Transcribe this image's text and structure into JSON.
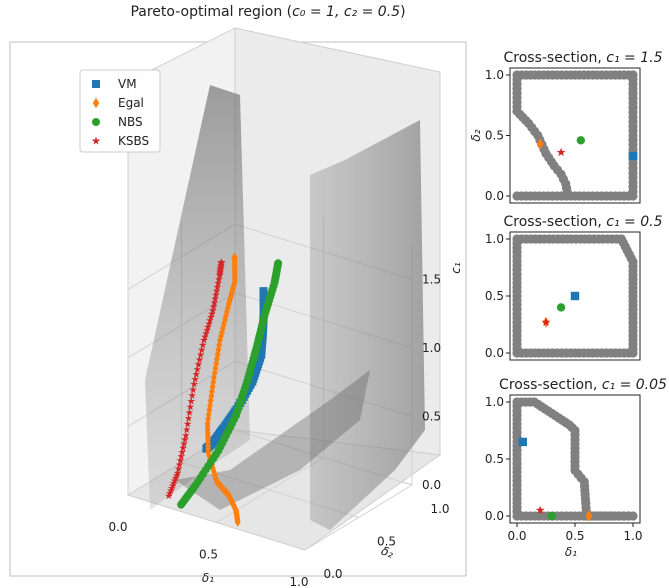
{
  "colors": {
    "VM": "#1f77b4",
    "Egal": "#ff7f0e",
    "NBS": "#2ca02c",
    "KSBS": "#d62728",
    "boundary": "#808080"
  },
  "chart_data": [
    {
      "type": "scatter",
      "projection": "3d",
      "title_prefix": "Pareto-optimal region (",
      "title_math": "c₀ = 1, c₂ = 0.5",
      "title_suffix": ")",
      "xlabel": "δ₁",
      "ylabel": "δ₂",
      "zlabel": "c₁",
      "x_ticks": [
        "0.0",
        "0.5",
        "1.0"
      ],
      "y_ticks": [
        "0.0",
        "0.5",
        "1.0"
      ],
      "z_ticks": [
        "0.0",
        "0.5",
        "1.0",
        "1.5"
      ],
      "xlim": [
        0,
        1
      ],
      "ylim": [
        0,
        1
      ],
      "zlim": [
        0,
        1.75
      ],
      "legend_position": "upper-left",
      "legend": [
        "VM",
        "Egal",
        "NBS",
        "KSBS"
      ],
      "series": [
        {
          "name": "VM",
          "marker": "square",
          "points": [
            [
              0.05,
              0.65,
              0.05
            ],
            [
              0.12,
              0.6,
              0.15
            ],
            [
              0.2,
              0.56,
              0.3
            ],
            [
              0.3,
              0.52,
              0.5
            ],
            [
              0.4,
              0.5,
              0.75
            ],
            [
              0.48,
              0.45,
              1.0
            ],
            [
              0.52,
              0.4,
              1.2
            ],
            [
              0.55,
              0.36,
              1.4
            ],
            [
              0.56,
              0.34,
              1.55
            ]
          ]
        },
        {
          "name": "Egal",
          "marker": "diamond",
          "points": [
            [
              0.62,
              0.0,
              0.05
            ],
            [
              0.55,
              0.1,
              0.06
            ],
            [
              0.45,
              0.2,
              0.08
            ],
            [
              0.35,
              0.25,
              0.12
            ],
            [
              0.29,
              0.27,
              0.3
            ],
            [
              0.28,
              0.28,
              0.5
            ],
            [
              0.3,
              0.3,
              0.8
            ],
            [
              0.32,
              0.33,
              1.1
            ],
            [
              0.34,
              0.38,
              1.35
            ],
            [
              0.35,
              0.42,
              1.5
            ],
            [
              0.33,
              0.45,
              1.65
            ]
          ]
        },
        {
          "name": "NBS",
          "marker": "circle",
          "points": [
            [
              0.3,
              0.0,
              0.05
            ],
            [
              0.32,
              0.1,
              0.15
            ],
            [
              0.36,
              0.25,
              0.35
            ],
            [
              0.38,
              0.38,
              0.55
            ],
            [
              0.42,
              0.42,
              0.8
            ],
            [
              0.46,
              0.44,
              1.05
            ],
            [
              0.5,
              0.45,
              1.3
            ],
            [
              0.55,
              0.46,
              1.55
            ],
            [
              0.57,
              0.46,
              1.7
            ]
          ]
        },
        {
          "name": "KSBS",
          "marker": "star",
          "points": [
            [
              0.2,
              0.05,
              0.05
            ],
            [
              0.22,
              0.1,
              0.2
            ],
            [
              0.23,
              0.16,
              0.45
            ],
            [
              0.24,
              0.22,
              0.8
            ],
            [
              0.26,
              0.28,
              1.1
            ],
            [
              0.28,
              0.33,
              1.3
            ],
            [
              0.3,
              0.36,
              1.55
            ],
            [
              0.31,
              0.36,
              1.65
            ]
          ]
        }
      ]
    },
    {
      "type": "scatter",
      "title_prefix": "Cross-section, ",
      "title_math": "c₁ = 1.5",
      "xlim": [
        0,
        1
      ],
      "ylim": [
        0,
        1
      ],
      "y_ticks": [
        "0.0",
        "0.5",
        "1.0"
      ],
      "ylabel": "δ₂",
      "boundary": [
        [
          0,
          0
        ],
        [
          1,
          0
        ],
        [
          1,
          1
        ],
        [
          0,
          1
        ],
        [
          0,
          0.7
        ],
        [
          0.1,
          0.6
        ],
        [
          0.18,
          0.5
        ],
        [
          0.25,
          0.35
        ],
        [
          0.32,
          0.25
        ],
        [
          0.38,
          0.18
        ],
        [
          0.42,
          0.1
        ],
        [
          0.44,
          0.0
        ]
      ],
      "points": [
        {
          "name": "VM",
          "x": 1.0,
          "y": 0.33
        },
        {
          "name": "Egal",
          "x": 0.2,
          "y": 0.43
        },
        {
          "name": "NBS",
          "x": 0.55,
          "y": 0.46
        },
        {
          "name": "KSBS",
          "x": 0.38,
          "y": 0.36
        }
      ]
    },
    {
      "type": "scatter",
      "title_prefix": "Cross-section, ",
      "title_math": "c₁ = 0.5",
      "xlim": [
        0,
        1
      ],
      "ylim": [
        0,
        1
      ],
      "y_ticks": [
        "0.0",
        "0.5",
        "1.0"
      ],
      "boundary": [
        [
          0,
          0
        ],
        [
          1,
          0
        ],
        [
          1,
          0.8
        ],
        [
          0.95,
          0.9
        ],
        [
          0.9,
          1
        ],
        [
          0,
          1
        ],
        [
          0,
          0
        ]
      ],
      "points": [
        {
          "name": "VM",
          "x": 0.5,
          "y": 0.5
        },
        {
          "name": "Egal",
          "x": 0.25,
          "y": 0.27
        },
        {
          "name": "NBS",
          "x": 0.38,
          "y": 0.4
        },
        {
          "name": "KSBS",
          "x": 0.25,
          "y": 0.27
        }
      ]
    },
    {
      "type": "scatter",
      "title_prefix": "Cross-section, ",
      "title_math": "c₁ = 0.05",
      "xlim": [
        0,
        1
      ],
      "ylim": [
        0,
        1
      ],
      "x_ticks": [
        "0.0",
        "0.5",
        "1.0"
      ],
      "y_ticks": [
        "0.0",
        "0.5",
        "1.0"
      ],
      "xlabel": "δ₁",
      "boundary": [
        [
          0,
          1
        ],
        [
          0.15,
          1
        ],
        [
          0.3,
          0.9
        ],
        [
          0.45,
          0.8
        ],
        [
          0.5,
          0.75
        ],
        [
          0.5,
          0.4
        ],
        [
          0.58,
          0.3
        ],
        [
          0.6,
          0.0
        ],
        [
          1,
          0
        ],
        [
          0,
          0
        ],
        [
          0,
          1
        ]
      ],
      "points": [
        {
          "name": "VM",
          "x": 0.05,
          "y": 0.65
        },
        {
          "name": "Egal",
          "x": 0.62,
          "y": 0.0
        },
        {
          "name": "NBS",
          "x": 0.3,
          "y": 0.0
        },
        {
          "name": "KSBS",
          "x": 0.2,
          "y": 0.05
        }
      ]
    }
  ]
}
